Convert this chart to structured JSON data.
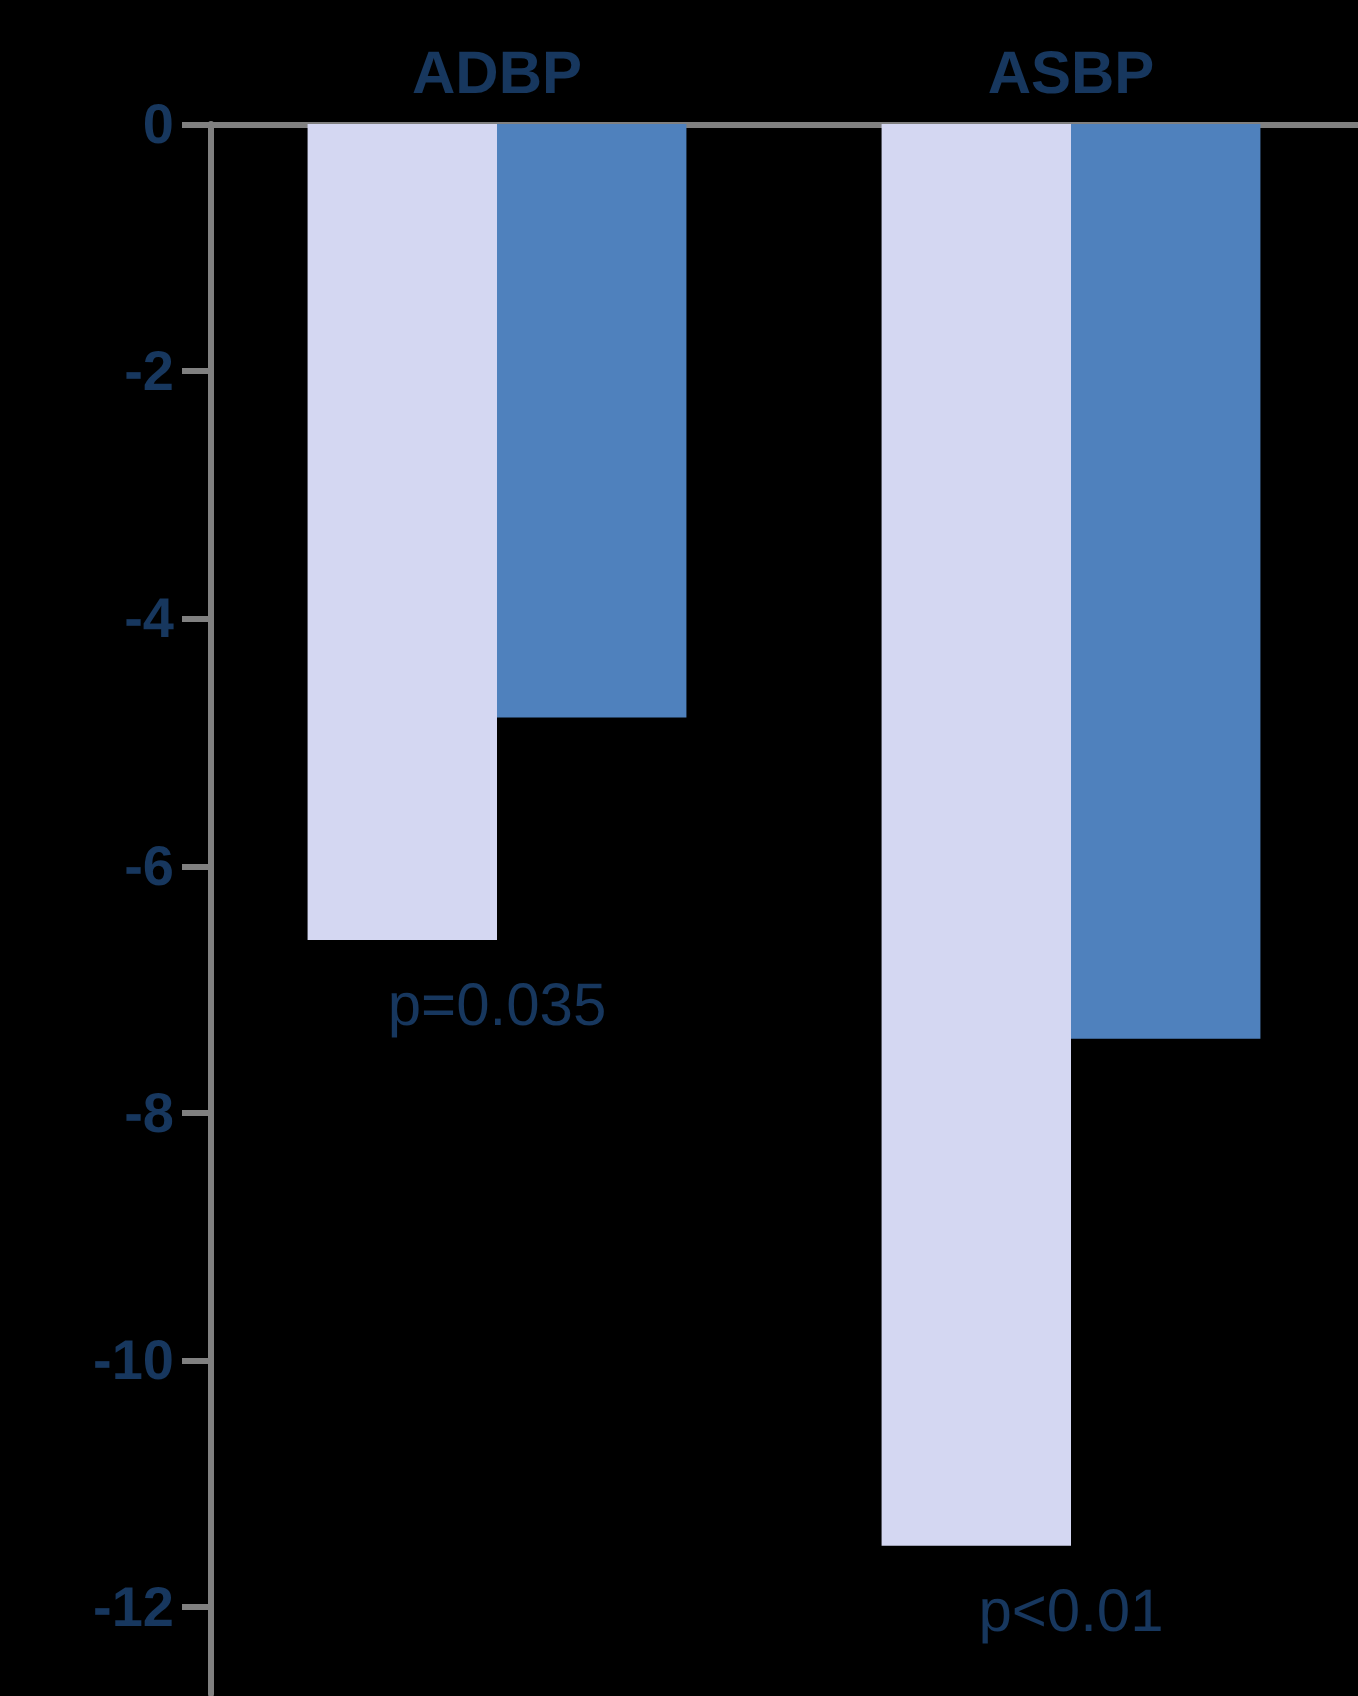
{
  "chart_data": {
    "type": "bar",
    "categories": [
      "ADBP",
      "ASBP"
    ],
    "series": [
      {
        "color": "#d4d7f2",
        "values": [
          -6.6,
          -11.5
        ]
      },
      {
        "color": "#4f81bd",
        "values": [
          -4.8,
          -7.4
        ]
      }
    ],
    "ylim": [
      -12.7,
      0
    ],
    "yticks": [
      0,
      -2,
      -4,
      -6,
      -8,
      -10,
      -12
    ],
    "grid": false,
    "annotations": [
      "p=0.035",
      "p<0.01"
    ]
  }
}
